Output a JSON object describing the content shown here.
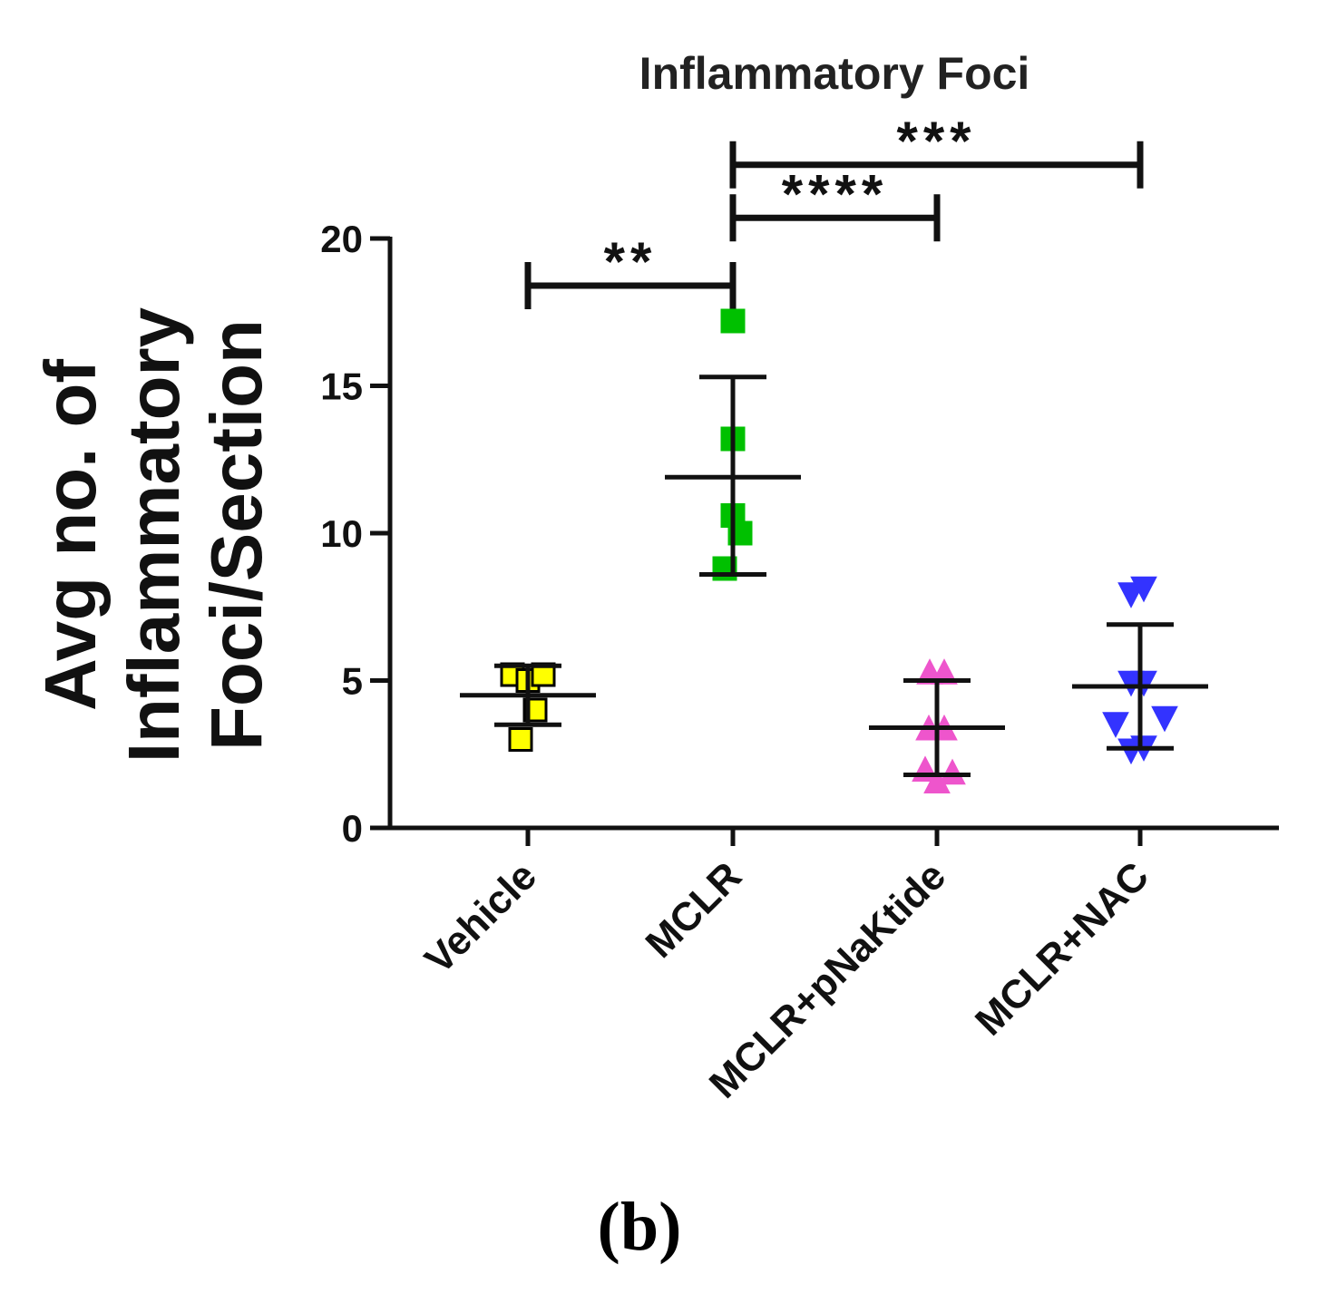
{
  "chart_data": {
    "type": "scatter",
    "title": "Inflammatory Foci",
    "ylabel_lines": [
      "Avg no. of",
      "Inflammatory",
      "Foci/Section"
    ],
    "xlabel": "",
    "ylim": [
      0,
      20
    ],
    "yticks": [
      "0",
      "5",
      "10",
      "15",
      "20"
    ],
    "categories": [
      "Vehicle",
      "MCLR",
      "MCLR+pNaKtide",
      "MCLR+NAC"
    ],
    "series": [
      {
        "name": "Vehicle",
        "marker": "square",
        "color": "#ffff00",
        "edge": "#000000",
        "points": [
          {
            "x": -0.17,
            "y": 5.2
          },
          {
            "x": 0.0,
            "y": 5.0
          },
          {
            "x": 0.17,
            "y": 5.2
          },
          {
            "x": 0.08,
            "y": 4.0
          },
          {
            "x": -0.08,
            "y": 3.0
          }
        ],
        "mean": 4.5,
        "sd_upper": 5.5,
        "sd_lower": 3.5
      },
      {
        "name": "MCLR",
        "marker": "square",
        "color": "#00c000",
        "edge": "#00c000",
        "points": [
          {
            "x": 0.0,
            "y": 17.2
          },
          {
            "x": 0.0,
            "y": 13.2
          },
          {
            "x": 0.0,
            "y": 10.6
          },
          {
            "x": 0.08,
            "y": 10.0
          },
          {
            "x": -0.09,
            "y": 8.8
          }
        ],
        "mean": 11.9,
        "sd_upper": 15.3,
        "sd_lower": 8.6
      },
      {
        "name": "MCLR+pNaKtide",
        "marker": "triangle-up",
        "color": "#ee55cc",
        "edge": "#ee55cc",
        "points": [
          {
            "x": -0.08,
            "y": 5.3
          },
          {
            "x": 0.08,
            "y": 5.3
          },
          {
            "x": -0.09,
            "y": 3.4
          },
          {
            "x": 0.08,
            "y": 3.4
          },
          {
            "x": -0.13,
            "y": 2.0
          },
          {
            "x": 0.17,
            "y": 1.9
          },
          {
            "x": 0.0,
            "y": 1.6
          }
        ],
        "mean": 3.4,
        "sd_upper": 5.0,
        "sd_lower": 1.8
      },
      {
        "name": "MCLR+NAC",
        "marker": "triangle-down",
        "color": "#3333ff",
        "edge": "#3333ff",
        "points": [
          {
            "x": -0.1,
            "y": 7.9
          },
          {
            "x": 0.04,
            "y": 8.1
          },
          {
            "x": -0.1,
            "y": 4.9
          },
          {
            "x": 0.04,
            "y": 4.9
          },
          {
            "x": -0.27,
            "y": 3.5
          },
          {
            "x": 0.27,
            "y": 3.7
          },
          {
            "x": -0.1,
            "y": 2.6
          },
          {
            "x": 0.04,
            "y": 2.7
          }
        ],
        "mean": 4.8,
        "sd_upper": 6.9,
        "sd_lower": 2.7
      }
    ],
    "significance": [
      {
        "from": "Vehicle",
        "to": "MCLR",
        "label": "**",
        "y": 18.4
      },
      {
        "from": "MCLR",
        "to": "MCLR+pNaKtide",
        "label": "****",
        "y": 20.7
      },
      {
        "from": "MCLR",
        "to": "MCLR+NAC",
        "label": "***",
        "y": 22.5
      }
    ]
  },
  "panel_label": "(b)"
}
